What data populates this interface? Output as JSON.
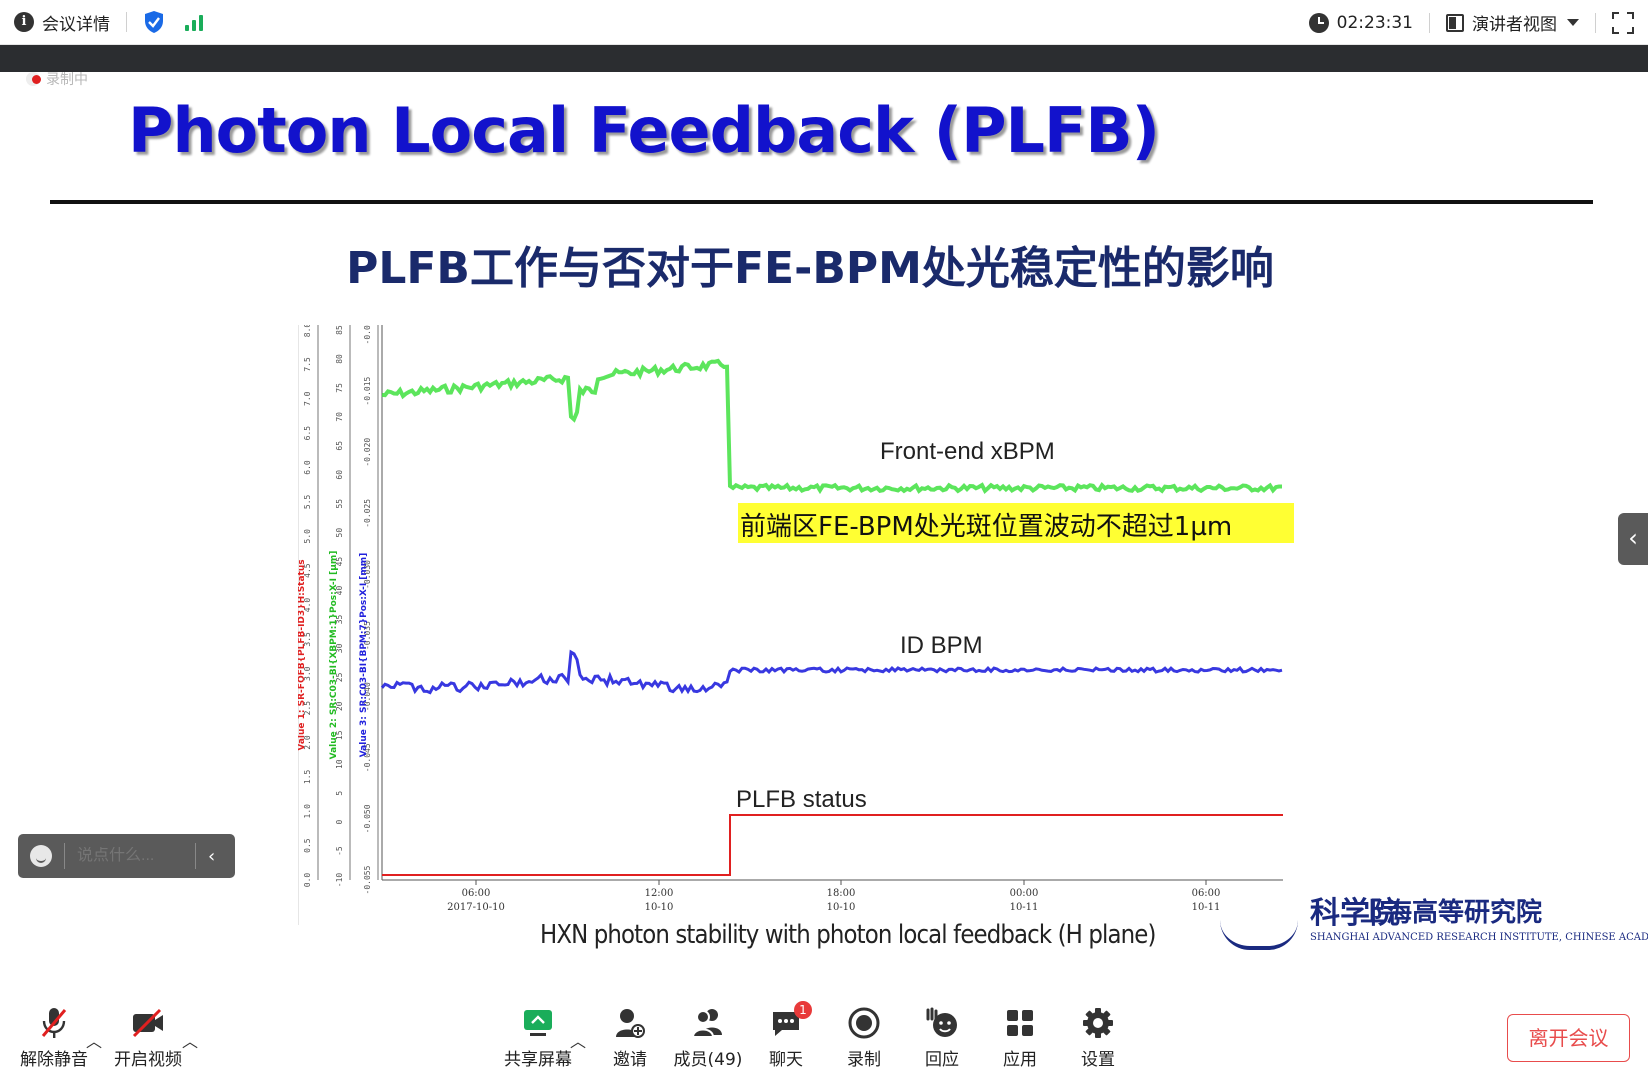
{
  "topbar": {
    "meeting_info": "会议详情",
    "timer": "02:23:31",
    "presenter_view": "演讲者视图"
  },
  "recording": {
    "label": "录制中"
  },
  "slide": {
    "title": "Photon Local Feedback (PLFB)",
    "subtitle": "PLFB工作与否对于FE-BPM处光稳定性的影响",
    "caption": "HXN photon stability with photon local feedback (H plane)",
    "logo_cn": "上海高等研究院",
    "logo_glyph": "科学院",
    "logo_en": "SHANGHAI ADVANCED RESEARCH INSTITUTE, CHINESE ACADEMY OF SCIENCES"
  },
  "chart_data": {
    "type": "line",
    "traces": [
      {
        "name": "Front-end xBPM",
        "color": "#3fe03f"
      },
      {
        "name": "ID BPM",
        "color": "#2222dd"
      },
      {
        "name": "PLFB status",
        "color": "#e02020"
      }
    ],
    "highlight_note": "前端区FE-BPM处光斑位置波动不超过1µm",
    "highlight_color": "#ffff33",
    "x_ticks": [
      {
        "time": "06:00",
        "date": "2017-10-10"
      },
      {
        "time": "12:00",
        "date": "10-10"
      },
      {
        "time": "18:00",
        "date": "10-10"
      },
      {
        "time": "00:00",
        "date": "10-11"
      },
      {
        "time": "06:00",
        "date": "10-11"
      }
    ],
    "axis1_label": "Value 1: SR-FOFB{PLFB-ID3}H:Status",
    "axis2_label": "Value 2: SR:C03-BI{XBPM:1}Pos:X-I [µm]",
    "axis3_label": "Value 3: SR:C03-BI{BPM:7}Pos:X-I [mm]",
    "axis1_ticks": [
      "0.0",
      "0.5",
      "1.0",
      "1.5",
      "2.0",
      "2.5",
      "3.0",
      "3.5",
      "4.0",
      "4.5",
      "5.0",
      "5.5",
      "6.0",
      "6.5",
      "7.0",
      "7.5",
      "8.0"
    ],
    "axis2_ticks": [
      "-10",
      "-5",
      "0",
      "5",
      "10",
      "15",
      "20",
      "25",
      "30",
      "35",
      "40",
      "45",
      "50",
      "55",
      "60",
      "65",
      "70",
      "75",
      "80",
      "85"
    ],
    "axis3_ticks": [
      "-0.055",
      "-0.050",
      "-0.045",
      "-0.040",
      "-0.035",
      "-0.030",
      "-0.025",
      "-0.020",
      "-0.015",
      "-0.010"
    ]
  },
  "chat": {
    "placeholder": "说点什么..."
  },
  "toolbar": {
    "unmute": "解除静音",
    "video": "开启视频",
    "share": "共享屏幕",
    "invite": "邀请",
    "members": "成员(49)",
    "chat": "聊天",
    "chat_badge": "1",
    "record": "录制",
    "react": "回应",
    "apps": "应用",
    "settings": "设置",
    "leave": "离开会议"
  }
}
